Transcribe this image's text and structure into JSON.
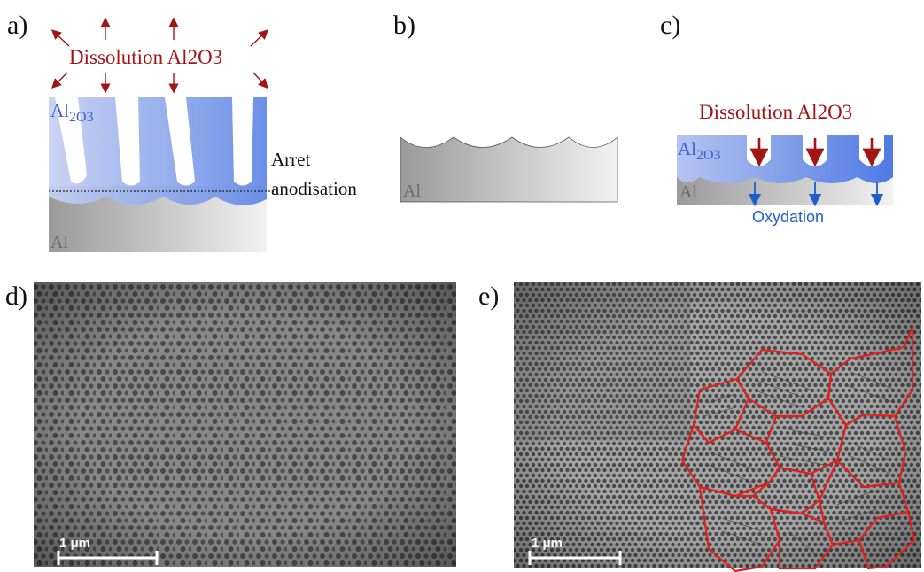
{
  "panels": {
    "a": {
      "label": "a)",
      "dissolution": "Dissolution Al",
      "dissolution_formula": "2O3",
      "oxide": "Al",
      "oxide_sub": "2O3",
      "stop_line1": "Arret",
      "stop_line2": "anodisation",
      "metal": "Al"
    },
    "b": {
      "label": "b)",
      "metal": "Al"
    },
    "c": {
      "label": "c)",
      "dissolution": "Dissolution Al",
      "dissolution_formula": "2O3",
      "oxide": "Al",
      "oxide_sub": "2O3",
      "metal": "Al",
      "oxidation": "Oxydation"
    },
    "d": {
      "label": "d)",
      "scale": "1 μm"
    },
    "e": {
      "label": "e)",
      "scale": "1 μm"
    }
  },
  "colors": {
    "dissolution": "#a31414",
    "oxide_text": "#3b63d6",
    "oxidation": "#1f5fcc",
    "domain_outline": "#e0201f"
  }
}
